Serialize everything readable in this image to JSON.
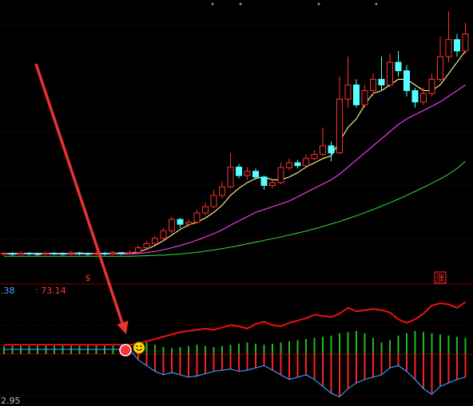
{
  "chart_data": [
    {
      "type": "candlestick",
      "open": [
        10.3,
        10.5,
        10.2,
        10.6,
        10.4,
        10.3,
        10.6,
        10.5,
        10.4,
        10.7,
        10.5,
        10.3,
        10.6,
        10.4,
        10.8,
        10.5,
        10.9,
        12.5,
        14.0,
        15.8,
        18.5,
        22.5,
        20.8,
        21.5,
        24.8,
        27.0,
        31.0,
        34.0,
        41.0,
        38.0,
        39.5,
        37.5,
        34.5,
        35.5,
        40.8,
        42.5,
        41.5,
        44.0,
        45.5,
        48.5,
        46.0,
        65.0,
        70.0,
        63.0,
        68.0,
        72.0,
        70.0,
        78.0,
        75.0,
        68.0,
        64.0,
        67.0,
        72.0,
        80.0,
        86.0,
        82.0
      ],
      "high": [
        11.0,
        10.9,
        11.1,
        11.0,
        10.9,
        11.1,
        11.0,
        10.9,
        11.2,
        11.0,
        10.9,
        11.1,
        11.0,
        11.3,
        11.0,
        11.6,
        13.5,
        15.0,
        16.8,
        19.5,
        23.5,
        23.0,
        22.5,
        26.0,
        28.5,
        33.0,
        36.0,
        46.0,
        42.0,
        41.0,
        40.5,
        38.0,
        36.5,
        42.5,
        44.0,
        43.5,
        45.5,
        47.0,
        55.0,
        50.0,
        73.0,
        80.0,
        72.0,
        70.0,
        74.0,
        80.0,
        81.0,
        82.0,
        77.0,
        69.0,
        69.0,
        74.0,
        87.0,
        96.0,
        88.0,
        92.0
      ],
      "low": [
        9.8,
        9.7,
        9.9,
        9.8,
        9.8,
        9.9,
        9.9,
        9.8,
        9.9,
        9.9,
        9.7,
        9.9,
        9.8,
        10.0,
        9.9,
        10.2,
        10.5,
        12.0,
        13.5,
        15.0,
        17.5,
        19.5,
        20.0,
        21.0,
        24.0,
        26.5,
        30.0,
        33.5,
        37.0,
        36.5,
        36.5,
        33.0,
        33.5,
        35.0,
        40.0,
        40.5,
        41.0,
        43.5,
        45.0,
        43.0,
        45.5,
        62.0,
        62.0,
        62.0,
        66.0,
        68.0,
        69.0,
        73.0,
        66.0,
        62.0,
        63.0,
        66.0,
        71.0,
        78.0,
        80.0,
        81.0
      ],
      "close": [
        10.5,
        10.2,
        10.6,
        10.4,
        10.3,
        10.6,
        10.5,
        10.4,
        10.7,
        10.5,
        10.3,
        10.6,
        10.4,
        10.8,
        10.5,
        10.9,
        12.5,
        14.0,
        15.8,
        18.5,
        22.5,
        20.8,
        21.5,
        24.8,
        27.0,
        31.0,
        34.0,
        41.0,
        38.0,
        39.5,
        37.5,
        34.5,
        35.5,
        40.8,
        42.5,
        41.5,
        44.0,
        45.5,
        48.5,
        46.0,
        65.0,
        70.0,
        63.0,
        68.0,
        72.0,
        70.0,
        78.0,
        75.0,
        68.0,
        64.0,
        67.0,
        72.0,
        80.0,
        86.0,
        82.0,
        88.0
      ],
      "up_color": "#ff3232",
      "down_color": "#54ffff",
      "lines": [
        {
          "color": "#ffff99",
          "values": [
            10.5,
            10.5,
            10.5,
            10.5,
            10.5,
            10.5,
            10.5,
            10.5,
            10.5,
            10.5,
            10.5,
            10.5,
            10.5,
            10.5,
            10.5,
            10.5,
            11,
            12,
            13.3,
            15,
            17,
            19,
            20.5,
            21.5,
            23,
            25,
            27.5,
            31,
            33.5,
            35.5,
            37,
            37.5,
            36.5,
            36.5,
            37.5,
            39,
            41,
            42.5,
            44,
            45,
            50,
            55,
            58,
            63,
            67,
            68,
            70,
            72,
            72,
            70,
            68,
            68,
            70,
            74,
            78,
            82
          ]
        },
        {
          "color": "#ff40ff",
          "values": [
            10.3,
            10.3,
            10.3,
            10.3,
            10.3,
            10.3,
            10.3,
            10.3,
            10.3,
            10.3,
            10.3,
            10.3,
            10.3,
            10.3,
            10.3,
            10.3,
            10.5,
            10.8,
            11.2,
            11.8,
            12.5,
            13.3,
            14.2,
            15.2,
            16.3,
            17.5,
            18.8,
            20.5,
            22,
            23.5,
            25,
            26,
            27,
            28,
            29,
            30.5,
            32,
            33.5,
            35,
            36.5,
            38.5,
            41,
            43.5,
            46,
            48.5,
            51,
            53.5,
            56,
            58,
            59.5,
            61,
            62.5,
            64,
            66,
            68,
            70
          ]
        },
        {
          "color": "#33cc33",
          "values": [
            9.5,
            9.5,
            9.5,
            9.5,
            9.5,
            9.5,
            9.5,
            9.5,
            9.5,
            9.5,
            9.5,
            9.5,
            9.5,
            9.5,
            9.5,
            9.5,
            9.6,
            9.7,
            9.8,
            9.9,
            10.1,
            10.3,
            10.6,
            10.9,
            11.3,
            11.7,
            12.2,
            12.7,
            13.3,
            13.9,
            14.5,
            15.1,
            15.7,
            16.3,
            17.0,
            17.7,
            18.4,
            19.2,
            20.0,
            20.9,
            21.8,
            22.8,
            23.8,
            24.9,
            26.0,
            27.2,
            28.4,
            29.7,
            31.0,
            32.4,
            33.8,
            35.3,
            36.8,
            38.5,
            40.5,
            43.0
          ]
        }
      ],
      "markers": [
        {
          "text": "$",
          "index": 10
        },
        {
          "text": "涨",
          "index": 52
        }
      ],
      "ylim": [
        0,
        100
      ],
      "yticks": [
        15.5,
        34.6,
        53.5,
        71.8,
        91
      ],
      "grid": true
    },
    {
      "type": "histogram-lines",
      "annotations": [
        ".38",
        ": 73.14",
        "2.95"
      ],
      "positive": {
        "color": "#22bb22",
        "values": [
          7,
          7,
          7,
          7,
          7,
          7,
          7,
          7,
          7,
          7,
          7,
          7,
          7,
          7,
          7,
          7,
          9,
          10,
          8,
          6,
          5,
          6,
          7,
          8,
          7,
          6,
          7,
          8,
          9,
          10,
          9,
          8,
          9,
          10,
          11,
          12,
          13,
          14,
          15,
          16,
          18,
          19,
          20,
          18,
          14,
          10,
          12,
          16,
          18,
          20,
          19,
          18,
          17,
          16,
          15,
          14
        ]
      },
      "negative": {
        "color": "#ff2020",
        "values": [
          0,
          0,
          0,
          0,
          0,
          0,
          0,
          0,
          0,
          0,
          0,
          0,
          0,
          0,
          0,
          0,
          -5,
          -10,
          -15,
          -18,
          -16,
          -18,
          -20,
          -19,
          -17,
          -15,
          -14,
          -13,
          -15,
          -14,
          -12,
          -10,
          -14,
          -18,
          -22,
          -20,
          -18,
          -22,
          -28,
          -34,
          -37,
          -30,
          -25,
          -22,
          -20,
          -18,
          -12,
          -10,
          -15,
          -22,
          -30,
          -35,
          -28,
          -25,
          -22,
          -20
        ]
      },
      "lines": [
        {
          "color": "#ee1111",
          "values": [
            8,
            8,
            8,
            8,
            8,
            8,
            8,
            8,
            8,
            8,
            8,
            8,
            8,
            8,
            8,
            8,
            9,
            11,
            13,
            15,
            17,
            19,
            20,
            21,
            22,
            21,
            23,
            25,
            24,
            22,
            26,
            28,
            25,
            24,
            27,
            29,
            31,
            34,
            33,
            32,
            35,
            40,
            37,
            38,
            39,
            38,
            36,
            30,
            27,
            30,
            35,
            42,
            44,
            43,
            40,
            45
          ]
        },
        {
          "color": "#3399ff",
          "values": [
            4,
            4,
            4,
            4,
            4,
            4,
            4,
            4,
            4,
            4,
            4,
            4,
            4,
            4,
            4,
            4,
            -5,
            -10,
            -15,
            -18,
            -16,
            -18,
            -20,
            -19,
            -17,
            -15,
            -14,
            -13,
            -15,
            -14,
            -12,
            -10,
            -14,
            -18,
            -22,
            -20,
            -18,
            -22,
            -28,
            -34,
            -37,
            -30,
            -25,
            -22,
            -20,
            -18,
            -12,
            -10,
            -15,
            -22,
            -30,
            -35,
            -28,
            -25,
            -22,
            -20
          ]
        }
      ],
      "ylim": [
        -45,
        60
      ],
      "yticks": [
        -36,
        0,
        25
      ],
      "grid": true
    }
  ]
}
